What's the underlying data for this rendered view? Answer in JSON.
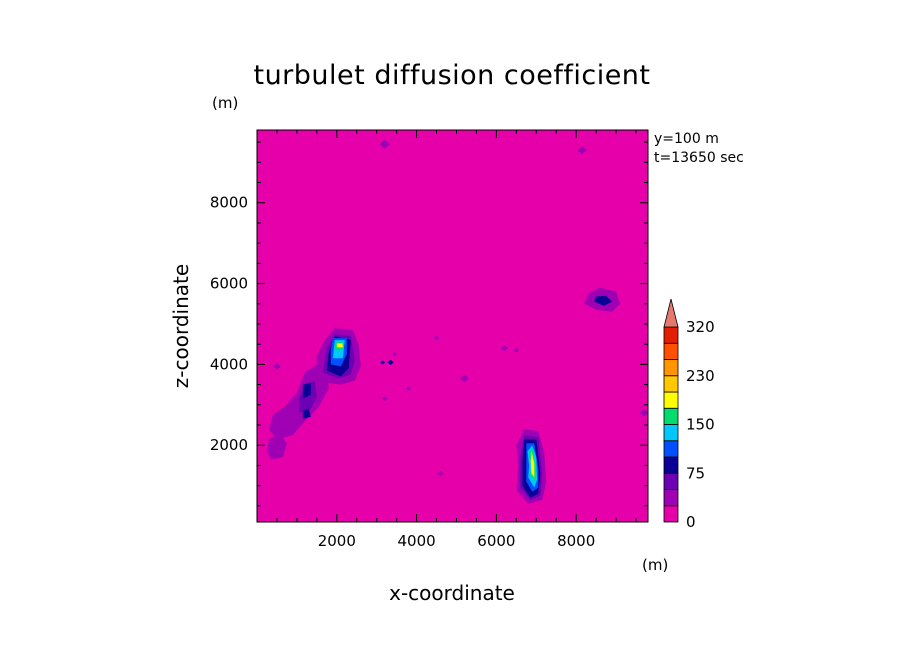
{
  "chart_data": {
    "type": "heatmap",
    "title": "turbulet diffusion coefficient",
    "xlabel": "x-coordinate",
    "ylabel": "z-coordinate",
    "x_unit": "(m)",
    "y_unit": "(m)",
    "annotations": [
      "y=100 m",
      "t=13650 sec"
    ],
    "xlim": [
      0,
      9800
    ],
    "ylim": [
      100,
      9800
    ],
    "xticks": [
      2000,
      4000,
      6000,
      8000
    ],
    "yticks": [
      2000,
      4000,
      6000,
      8000
    ],
    "background_value": 0,
    "background_color": "#e600aa",
    "colorbar": {
      "levels": [
        0,
        25,
        50,
        75,
        100,
        125,
        150,
        175,
        200,
        230,
        260,
        290,
        320
      ],
      "labeled_values": [
        "0",
        "75",
        "150",
        "230",
        "320"
      ],
      "colors": [
        "#e600aa",
        "#a000b4",
        "#6e00b4",
        "#0a0096",
        "#0050ff",
        "#00c8ff",
        "#00dc6e",
        "#ffff00",
        "#ffc800",
        "#ff9600",
        "#ff5000",
        "#e61e00"
      ],
      "over_color": "#e6786e",
      "extend": "max"
    },
    "features": [
      {
        "name": "cell-near-2000-4200",
        "x": 2000,
        "z": 4300,
        "peak": 200
      },
      {
        "name": "band-near-1300-3000",
        "x": 1300,
        "z": 3000,
        "peak": 90
      },
      {
        "name": "column-near-6900-1500",
        "x": 6900,
        "z": 1500,
        "peak": 210
      },
      {
        "name": "patch-near-8700-5600",
        "x": 8700,
        "z": 5600,
        "peak": 85
      }
    ]
  }
}
